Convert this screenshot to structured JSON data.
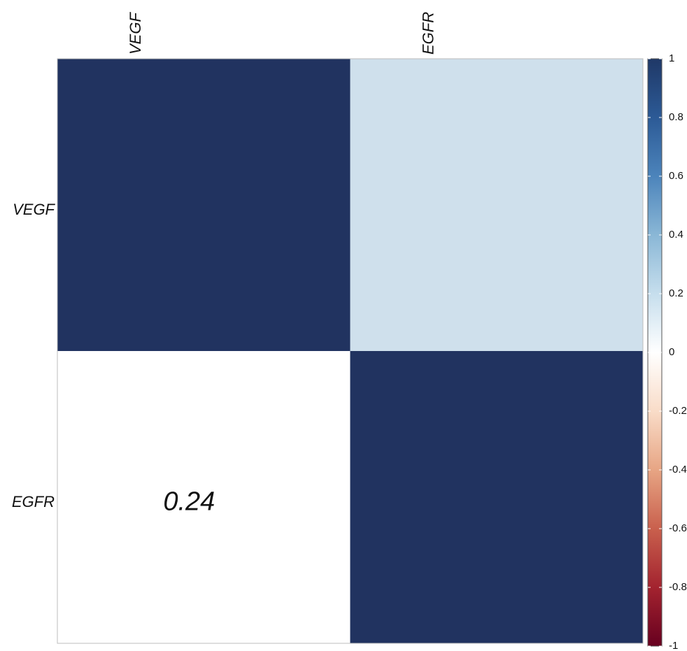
{
  "chart_data": {
    "type": "heatmap",
    "title": "",
    "row_labels": [
      "VEGF",
      "EGFR"
    ],
    "col_labels": [
      "VEGF",
      "EGFR"
    ],
    "values": [
      [
        1,
        0.24
      ],
      [
        0.24,
        1
      ]
    ],
    "shown_labels": [
      {
        "row": 1,
        "col": 0,
        "text": "0.24"
      }
    ],
    "colorbar": {
      "min": -1,
      "max": 1,
      "ticks": [
        "1",
        "0.8",
        "0.6",
        "0.4",
        "0.2",
        "0",
        "-0.2",
        "-0.4",
        "-0.6",
        "-0.8",
        "-1"
      ],
      "placement": "right"
    },
    "colors": {
      "high": "#213360",
      "mid": "#ffffff",
      "low": "#67001f",
      "upper_offdiag": "#cfe0ec",
      "lower_offdiag": "#ffffff"
    }
  }
}
